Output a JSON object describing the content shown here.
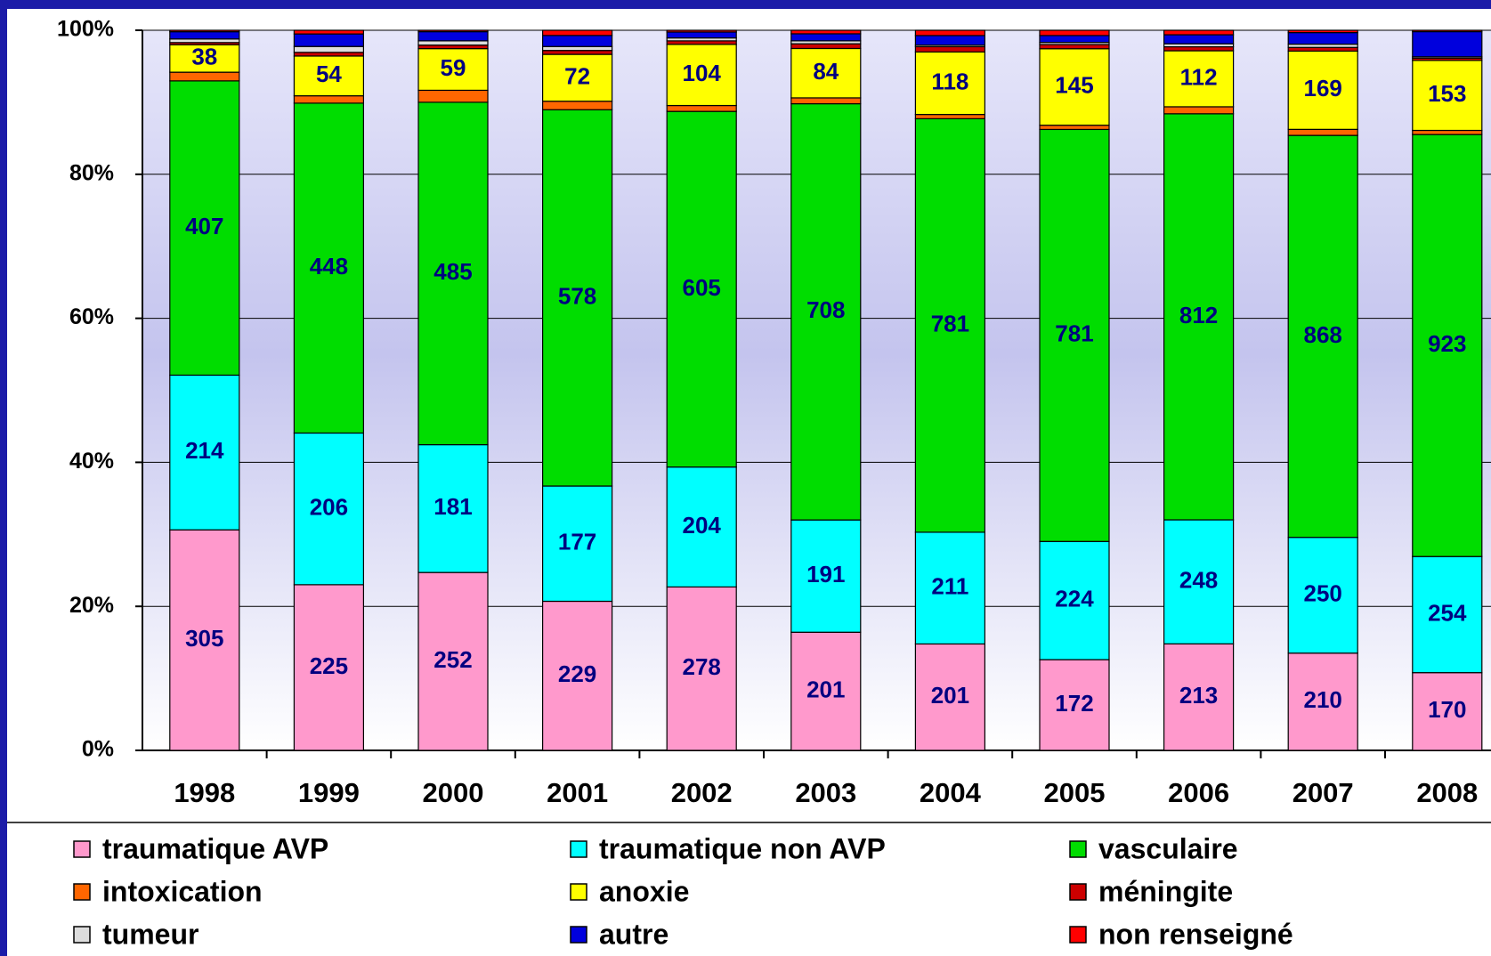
{
  "chart_data": {
    "type": "stacked_bar_percent",
    "categories": [
      "1998",
      "1999",
      "2000",
      "2001",
      "2002",
      "2003",
      "2004",
      "2005",
      "2006",
      "2007",
      "2008"
    ],
    "series": [
      {
        "name": "traumatique AVP",
        "color": "#ff99cc",
        "show_labels": true,
        "values": [
          305,
          225,
          252,
          229,
          278,
          201,
          201,
          172,
          213,
          210,
          170
        ]
      },
      {
        "name": "traumatique non AVP",
        "color": "#00ffff",
        "show_labels": true,
        "values": [
          214,
          206,
          181,
          177,
          204,
          191,
          211,
          224,
          248,
          250,
          254
        ]
      },
      {
        "name": "vasculaire",
        "color": "#00dd00",
        "show_labels": true,
        "values": [
          407,
          448,
          485,
          578,
          605,
          708,
          781,
          781,
          812,
          868,
          923
        ]
      },
      {
        "name": "intoxication",
        "color": "#ff6600",
        "show_labels": false,
        "values": [
          12,
          10,
          17,
          13,
          10,
          10,
          8,
          8,
          14,
          13,
          9
        ]
      },
      {
        "name": "anoxie",
        "color": "#ffff00",
        "show_labels": true,
        "values": [
          38,
          54,
          59,
          72,
          104,
          84,
          118,
          145,
          112,
          169,
          153
        ]
      },
      {
        "name": "méningite",
        "color": "#cc0000",
        "show_labels": false,
        "values": [
          3,
          5,
          5,
          6,
          6,
          8,
          10,
          8,
          8,
          8,
          5
        ]
      },
      {
        "name": "tumeur",
        "color": "#dddddd",
        "show_labels": false,
        "values": [
          5,
          8,
          6,
          6,
          5,
          5,
          3,
          4,
          6,
          7,
          3
        ]
      },
      {
        "name": "autre",
        "color": "#0000dd",
        "show_labels": false,
        "values": [
          10,
          17,
          13,
          17,
          10,
          12,
          18,
          13,
          18,
          25,
          55
        ]
      },
      {
        "name": "non renseigné",
        "color": "#ff0000",
        "show_labels": false,
        "values": [
          2,
          5,
          2,
          8,
          3,
          6,
          10,
          10,
          9,
          5,
          3
        ]
      }
    ],
    "ylim": [
      0,
      100
    ],
    "yticks": [
      {
        "value": 0,
        "label": "0%"
      },
      {
        "value": 20,
        "label": "20%"
      },
      {
        "value": 40,
        "label": "40%"
      },
      {
        "value": 60,
        "label": "60%"
      },
      {
        "value": 80,
        "label": "80%"
      },
      {
        "value": 100,
        "label": "100%"
      }
    ],
    "grid": true,
    "legend": "bottom"
  }
}
